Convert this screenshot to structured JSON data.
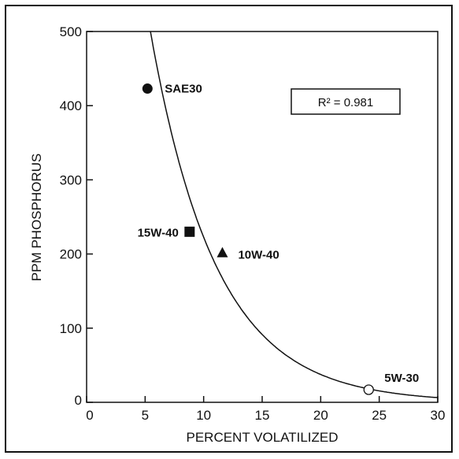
{
  "chart_data": {
    "type": "scatter",
    "xlabel": "PERCENT VOLATILIZED",
    "ylabel": "PPM PHOSPHORUS",
    "xlim": [
      0,
      30
    ],
    "ylim": [
      0,
      500
    ],
    "x_ticks": [
      0,
      5,
      10,
      15,
      20,
      25,
      30
    ],
    "y_ticks": [
      0,
      100,
      200,
      300,
      400,
      500
    ],
    "grid": false,
    "points": [
      {
        "label": "SAE30",
        "x": 5.2,
        "y": 423,
        "marker": "circle-filled"
      },
      {
        "label": "15W-40",
        "x": 8.8,
        "y": 230,
        "marker": "square-filled"
      },
      {
        "label": "10W-40",
        "x": 11.6,
        "y": 202,
        "marker": "triangle-filled"
      },
      {
        "label": "5W-30",
        "x": 24.1,
        "y": 17,
        "marker": "circle-open"
      }
    ],
    "fit_curve": {
      "type": "exponential",
      "a": 1320,
      "b": -0.178,
      "x_start": 4.5,
      "x_end": 30
    },
    "annotation": "R² = 0.981",
    "colors": {
      "ink": "#111111",
      "background": "#ffffff"
    }
  }
}
